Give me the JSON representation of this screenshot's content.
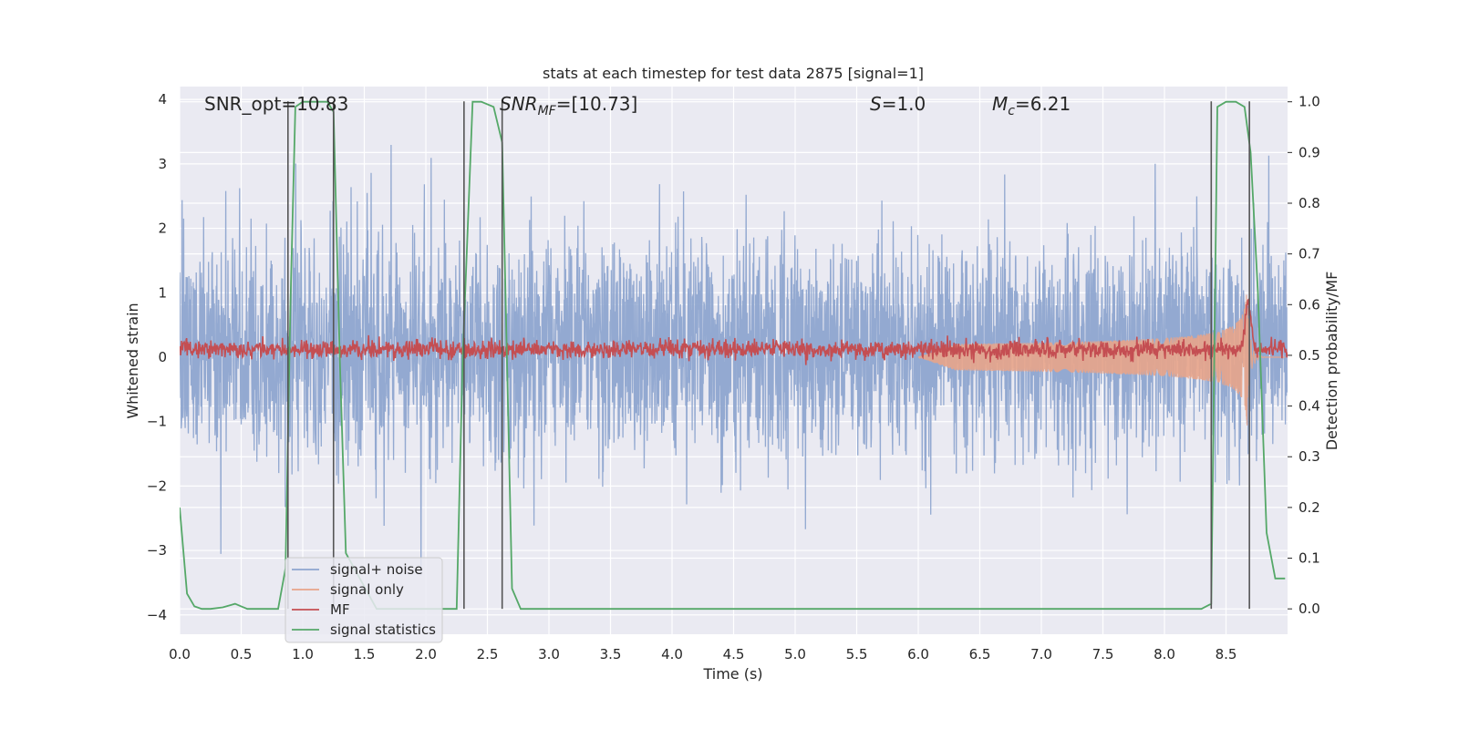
{
  "chart_data": {
    "type": "line",
    "title": "stats at each timestep for test data 2875 [signal=1]",
    "xlabel": "Time (s)",
    "ylabel": "Whitened strain",
    "y2label": "Detection probability/MF",
    "xlim": [
      0,
      9
    ],
    "ylim": [
      -4.3,
      4.2
    ],
    "y2lim": [
      -0.05,
      1.03
    ],
    "xticks": [
      "0.0",
      "0.5",
      "1.0",
      "1.5",
      "2.0",
      "2.5",
      "3.0",
      "3.5",
      "4.0",
      "4.5",
      "5.0",
      "5.5",
      "6.0",
      "6.5",
      "7.0",
      "7.5",
      "8.0",
      "8.5"
    ],
    "yticks": [
      "−4",
      "−3",
      "−2",
      "−1",
      "0",
      "1",
      "2",
      "3",
      "4"
    ],
    "y2ticks": [
      "0.0",
      "0.1",
      "0.2",
      "0.3",
      "0.4",
      "0.5",
      "0.6",
      "0.7",
      "0.8",
      "0.9",
      "1.0"
    ],
    "grid": true,
    "legend_position": "lower-left",
    "annotations": {
      "snr_opt": "SNR_opt=10.83",
      "snr_mf_main": "SNR",
      "snr_mf_sub": "MF",
      "snr_mf_rest": "=[10.73]",
      "s_main": "S",
      "s_rest": "=1.0",
      "mc_main": "M",
      "mc_sub": "c",
      "mc_rest": "=6.21"
    },
    "series": [
      {
        "name": "signal+ noise",
        "color": "#8ea5cf",
        "kind": "noise",
        "sigma": 0.85,
        "offset": 0.15
      },
      {
        "name": "signal only",
        "color": "#e8a48a",
        "kind": "chirp",
        "t_merge": 8.68,
        "max_amp": 0.7
      },
      {
        "name": "MF",
        "color": "#c44e52",
        "kind": "mf",
        "level": 0.12,
        "peak": 1.0
      },
      {
        "name": "signal statistics",
        "color": "#55a868",
        "kind": "prob",
        "x": [
          0.0,
          0.06,
          0.12,
          0.18,
          0.25,
          0.35,
          0.45,
          0.5,
          0.55,
          0.65,
          0.8,
          0.86,
          0.9,
          0.94,
          1.0,
          1.1,
          1.2,
          1.25,
          1.3,
          1.35,
          1.6,
          2.0,
          2.25,
          2.3,
          2.38,
          2.45,
          2.55,
          2.62,
          2.7,
          2.77,
          3.5,
          5.0,
          7.0,
          8.3,
          8.38,
          8.43,
          8.5,
          8.58,
          8.65,
          8.7,
          8.76,
          8.83,
          8.9,
          8.98
        ],
        "y": [
          0.2,
          0.03,
          0.005,
          0.0,
          0.0,
          0.003,
          0.01,
          0.005,
          0.0,
          0.0,
          0.0,
          0.08,
          0.6,
          0.99,
          1.0,
          1.0,
          1.0,
          0.98,
          0.5,
          0.11,
          0.0,
          0.0,
          0.0,
          0.5,
          1.0,
          1.0,
          0.99,
          0.92,
          0.04,
          0.0,
          0.0,
          0.0,
          0.0,
          0.0,
          0.01,
          0.99,
          1.0,
          1.0,
          0.99,
          0.9,
          0.62,
          0.15,
          0.06,
          0.06
        ]
      }
    ],
    "vlines": [
      0.88,
      1.25,
      2.31,
      2.62,
      8.38,
      8.69
    ]
  }
}
